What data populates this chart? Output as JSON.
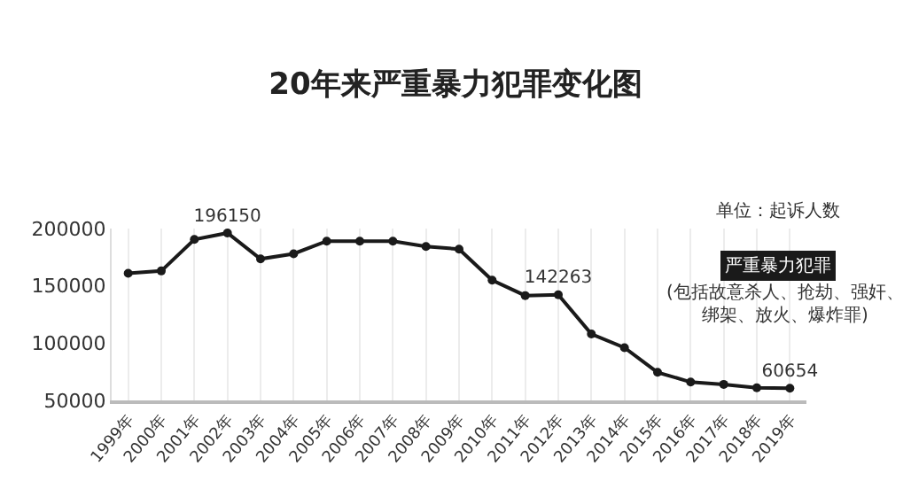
{
  "chart_data": {
    "type": "line",
    "title": "20年来严重暴力犯罪变化图",
    "categories": [
      "1999年",
      "2000年",
      "2001年",
      "2002年",
      "2003年",
      "2004年",
      "2005年",
      "2006年",
      "2007年",
      "2008年",
      "2009年",
      "2010年",
      "2011年",
      "2012年",
      "2013年",
      "2014年",
      "2015年",
      "2016年",
      "2017年",
      "2018年",
      "2019年"
    ],
    "series": [
      {
        "color": "#1a1a1a",
        "values": [
          161000,
          163000,
          190500,
          196150,
          173500,
          178000,
          189000,
          189000,
          189000,
          184400,
          182000,
          155000,
          141500,
          142263,
          108000,
          96000,
          74500,
          66000,
          64000,
          61000,
          60654
        ],
        "value_labels": [
          null,
          null,
          null,
          "196150",
          null,
          null,
          null,
          null,
          null,
          null,
          null,
          null,
          null,
          "142263",
          null,
          null,
          null,
          null,
          null,
          null,
          "60654"
        ]
      }
    ],
    "ylim": [
      50000,
      200000
    ],
    "yticks": [
      50000,
      100000,
      150000,
      200000
    ],
    "grid": "x",
    "marker": "circle",
    "line_style": "solid",
    "legend": false,
    "annotations": [
      "单位：起诉人数",
      "严重暴力犯罪",
      "(包括故意杀人、抢劫、强奸、绑架、放火、爆炸罪)"
    ]
  }
}
